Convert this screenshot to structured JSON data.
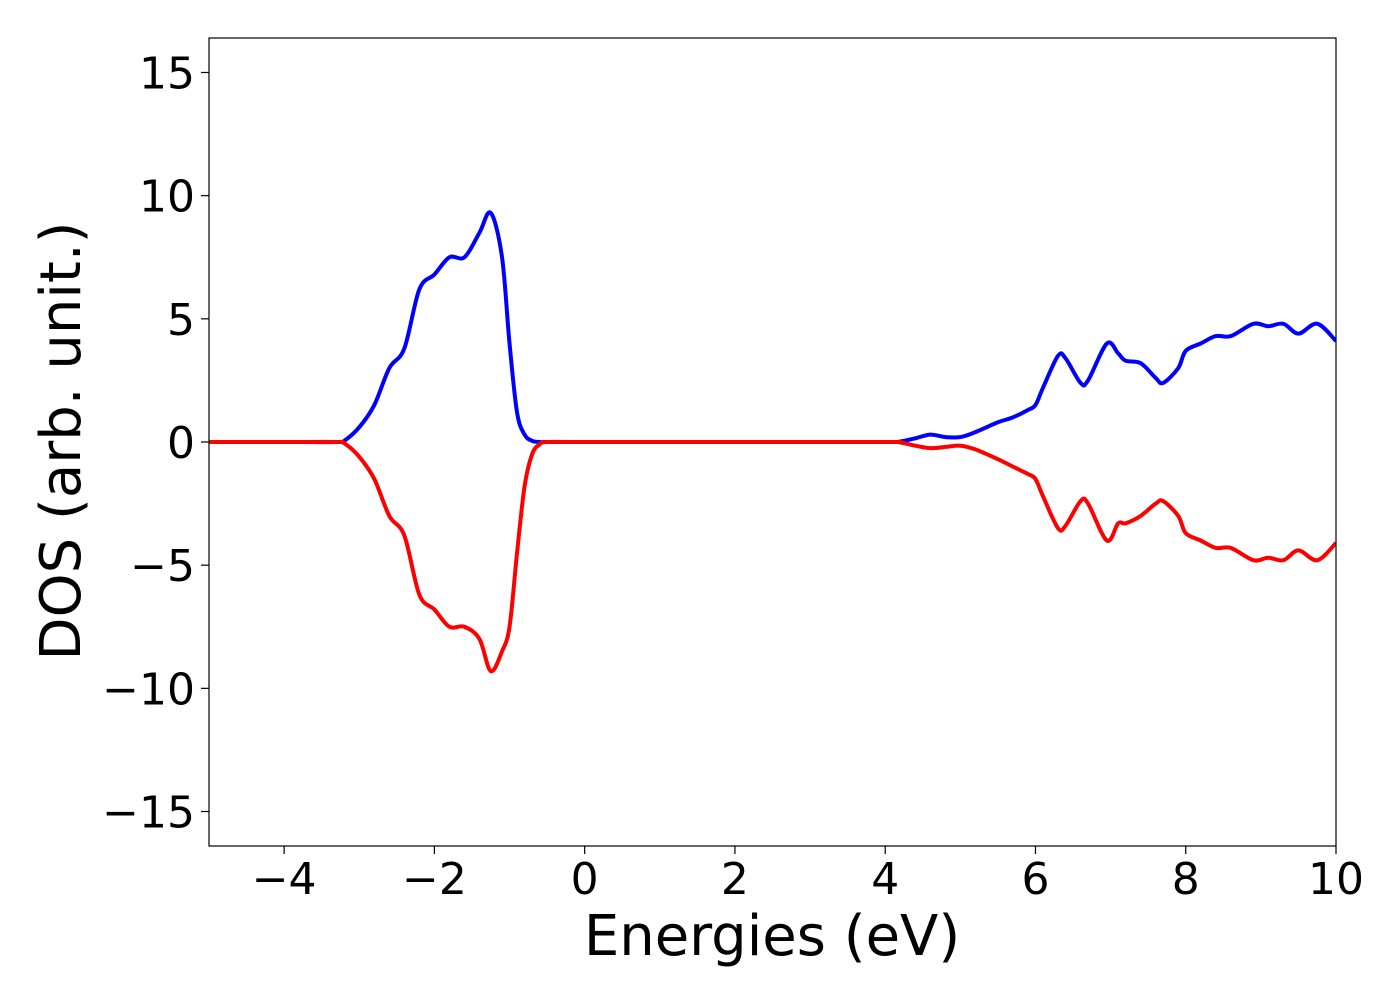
{
  "chart_data": {
    "type": "line",
    "x_label": "Energies (eV)",
    "y_label": "DOS (arb. unit.)",
    "x": [
      -5,
      -4,
      -3.3,
      -3.2,
      -3.0,
      -2.8,
      -2.6,
      -2.4,
      -2.2,
      -2.0,
      -1.8,
      -1.6,
      -1.4,
      -1.25,
      -1.1,
      -1.0,
      -0.9,
      -0.8,
      -0.7,
      -0.6,
      -0.5,
      0,
      2,
      4,
      4.2,
      4.4,
      4.6,
      4.8,
      5.0,
      5.2,
      5.5,
      5.7,
      5.9,
      6.0,
      6.1,
      6.3,
      6.4,
      6.6,
      6.7,
      6.95,
      7.1,
      7.2,
      7.4,
      7.6,
      7.7,
      7.9,
      8.0,
      8.2,
      8.4,
      8.6,
      8.9,
      9.1,
      9.3,
      9.5,
      9.75,
      10
    ],
    "series": [
      {
        "color": "#0000ff",
        "values": [
          0,
          0,
          0,
          0.05,
          0.6,
          1.5,
          3.0,
          3.8,
          6.2,
          6.8,
          7.5,
          7.5,
          8.5,
          9.3,
          7.5,
          4.0,
          1.2,
          0.3,
          0.05,
          0,
          0,
          0,
          0,
          0,
          0.02,
          0.15,
          0.3,
          0.2,
          0.2,
          0.4,
          0.8,
          1.0,
          1.3,
          1.5,
          2.2,
          3.5,
          3.4,
          2.4,
          2.5,
          4.0,
          3.6,
          3.3,
          3.2,
          2.6,
          2.4,
          3.0,
          3.7,
          4.0,
          4.3,
          4.3,
          4.8,
          4.7,
          4.8,
          4.4,
          4.8,
          4.1
        ]
      },
      {
        "color": "#ff0000",
        "values": [
          0,
          0,
          0,
          -0.05,
          -0.6,
          -1.5,
          -3.0,
          -3.8,
          -6.2,
          -6.8,
          -7.5,
          -7.5,
          -8.0,
          -9.3,
          -8.5,
          -7.5,
          -4.5,
          -1.8,
          -0.5,
          -0.1,
          0,
          0,
          0,
          0,
          -0.02,
          -0.15,
          -0.25,
          -0.2,
          -0.15,
          -0.3,
          -0.7,
          -1.0,
          -1.3,
          -1.5,
          -2.2,
          -3.5,
          -3.4,
          -2.4,
          -2.5,
          -4.0,
          -3.3,
          -3.3,
          -3.0,
          -2.5,
          -2.4,
          -3.0,
          -3.7,
          -4.0,
          -4.3,
          -4.3,
          -4.8,
          -4.7,
          -4.8,
          -4.4,
          -4.8,
          -4.1
        ]
      }
    ],
    "xlim": [
      -5,
      10
    ],
    "ylim": [
      -16.4,
      16.4
    ],
    "xticks": [
      {
        "value": -4,
        "label": "−4"
      },
      {
        "value": -2,
        "label": "−2"
      },
      0,
      2,
      4,
      6,
      8,
      10
    ],
    "yticks": [
      {
        "value": -15,
        "label": "−15"
      },
      {
        "value": -10,
        "label": "−10"
      },
      {
        "value": -5,
        "label": "−5"
      },
      0,
      5,
      10,
      15
    ],
    "grid": false
  }
}
